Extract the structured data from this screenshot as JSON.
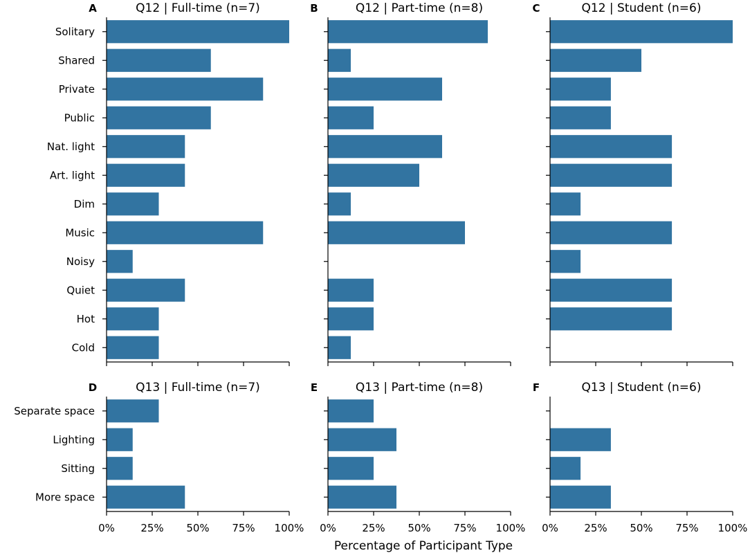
{
  "colors": {
    "bar": "#3274a1",
    "axis": "#000000",
    "background": "#ffffff"
  },
  "xlabel": "Percentage of Participant Type",
  "chart_data": [
    {
      "type": "bar",
      "orientation": "horizontal",
      "letter": "A",
      "title": "Q12 | Full-time (n=7)",
      "categories": [
        "Solitary",
        "Shared",
        "Private",
        "Public",
        "Nat. light",
        "Art. light",
        "Dim",
        "Music",
        "Noisy",
        "Quiet",
        "Hot",
        "Cold"
      ],
      "values": [
        100,
        57.1,
        85.7,
        57.1,
        42.9,
        42.9,
        28.6,
        85.7,
        14.3,
        42.9,
        28.6,
        28.6
      ],
      "xlim": [
        0,
        100
      ],
      "xticks": [
        "0%",
        "25%",
        "50%",
        "75%",
        "100%"
      ],
      "show_xtick_labels": false,
      "show_ytick_labels": true
    },
    {
      "type": "bar",
      "orientation": "horizontal",
      "letter": "B",
      "title": "Q12 | Part-time (n=8)",
      "categories": [
        "Solitary",
        "Shared",
        "Private",
        "Public",
        "Nat. light",
        "Art. light",
        "Dim",
        "Music",
        "Noisy",
        "Quiet",
        "Hot",
        "Cold"
      ],
      "values": [
        87.5,
        12.5,
        62.5,
        25,
        62.5,
        50,
        12.5,
        75,
        0,
        25,
        25,
        12.5
      ],
      "xlim": [
        0,
        100
      ],
      "xticks": [
        "0%",
        "25%",
        "50%",
        "75%",
        "100%"
      ],
      "show_xtick_labels": false,
      "show_ytick_labels": false
    },
    {
      "type": "bar",
      "orientation": "horizontal",
      "letter": "C",
      "title": "Q12 | Student (n=6)",
      "categories": [
        "Solitary",
        "Shared",
        "Private",
        "Public",
        "Nat. light",
        "Art. light",
        "Dim",
        "Music",
        "Noisy",
        "Quiet",
        "Hot",
        "Cold"
      ],
      "values": [
        100,
        50,
        33.3,
        33.3,
        66.7,
        66.7,
        16.7,
        66.7,
        16.7,
        66.7,
        66.7,
        0
      ],
      "xlim": [
        0,
        100
      ],
      "xticks": [
        "0%",
        "25%",
        "50%",
        "75%",
        "100%"
      ],
      "show_xtick_labels": false,
      "show_ytick_labels": false
    },
    {
      "type": "bar",
      "orientation": "horizontal",
      "letter": "D",
      "title": "Q13 | Full-time (n=7)",
      "categories": [
        "Separate space",
        "Lighting",
        "Sitting",
        "More space"
      ],
      "values": [
        28.6,
        14.3,
        14.3,
        42.9
      ],
      "xlim": [
        0,
        100
      ],
      "xticks": [
        "0%",
        "25%",
        "50%",
        "75%",
        "100%"
      ],
      "show_xtick_labels": true,
      "show_ytick_labels": true
    },
    {
      "type": "bar",
      "orientation": "horizontal",
      "letter": "E",
      "title": "Q13 | Part-time (n=8)",
      "categories": [
        "Separate space",
        "Lighting",
        "Sitting",
        "More space"
      ],
      "values": [
        25,
        37.5,
        25,
        37.5
      ],
      "xlim": [
        0,
        100
      ],
      "xticks": [
        "0%",
        "25%",
        "50%",
        "75%",
        "100%"
      ],
      "show_xtick_labels": true,
      "show_ytick_labels": false
    },
    {
      "type": "bar",
      "orientation": "horizontal",
      "letter": "F",
      "title": "Q13 | Student (n=6)",
      "categories": [
        "Separate space",
        "Lighting",
        "Sitting",
        "More space"
      ],
      "values": [
        0,
        33.3,
        16.7,
        33.3
      ],
      "xlim": [
        0,
        100
      ],
      "xticks": [
        "0%",
        "25%",
        "50%",
        "75%",
        "100%"
      ],
      "show_xtick_labels": true,
      "show_ytick_labels": false
    }
  ]
}
